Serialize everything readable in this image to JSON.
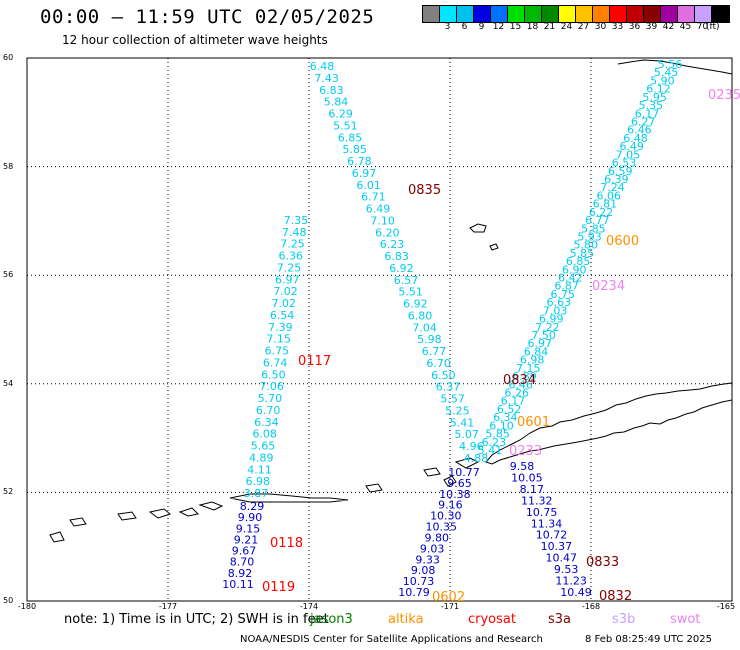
{
  "header": {
    "title": "00:00 — 11:59 UTC 02/05/2025",
    "subtitle": "12 hour collection of altimeter wave heights"
  },
  "legend": {
    "unit": "(ft)",
    "bins": [
      {
        "label": "",
        "color": "#808080"
      },
      {
        "label": "3",
        "color": "#00e5ff"
      },
      {
        "label": "6",
        "color": "#00c0f0"
      },
      {
        "label": "9",
        "color": "#0000e0"
      },
      {
        "label": "12",
        "color": "#0070ff"
      },
      {
        "label": "15",
        "color": "#00e000"
      },
      {
        "label": "18",
        "color": "#00b800"
      },
      {
        "label": "21",
        "color": "#008800"
      },
      {
        "label": "24",
        "color": "#ffff00"
      },
      {
        "label": "27",
        "color": "#ffc000"
      },
      {
        "label": "30",
        "color": "#ff8000"
      },
      {
        "label": "33",
        "color": "#ff0000"
      },
      {
        "label": "36",
        "color": "#c00000"
      },
      {
        "label": "39",
        "color": "#880000"
      },
      {
        "label": "42",
        "color": "#a000a0"
      },
      {
        "label": "45",
        "color": "#e070e0"
      },
      {
        "label": "70",
        "color": "#c8a0ff"
      },
      {
        "label": "",
        "color": "#000000"
      }
    ]
  },
  "axes": {
    "lat_ticks": [
      "60",
      "58",
      "56",
      "54",
      "52",
      "50"
    ],
    "lon_ticks": [
      "-180",
      "-177",
      "-174",
      "-171",
      "-168",
      "-165"
    ],
    "lat_range": [
      50,
      60
    ],
    "lon_range": [
      -180,
      -165
    ]
  },
  "passes": [
    {
      "time": "0835",
      "color": "#800000"
    },
    {
      "time": "0600",
      "color": "#ff9000"
    },
    {
      "time": "0234",
      "color": "#ee82ee"
    },
    {
      "time": "0235",
      "color": "#ee82ee"
    },
    {
      "time": "0834",
      "color": "#800000"
    },
    {
      "time": "0601",
      "color": "#ff9000"
    },
    {
      "time": "0233",
      "color": "#ee82ee"
    },
    {
      "time": "0117",
      "color": "#ff0000"
    },
    {
      "time": "0118",
      "color": "#ff0000"
    },
    {
      "time": "0119",
      "color": "#ff0000"
    },
    {
      "time": "0833",
      "color": "#800000"
    },
    {
      "time": "0832",
      "color": "#800000"
    },
    {
      "time": "0602",
      "color": "#ff9000"
    }
  ],
  "tracks": {
    "track_a": {
      "color": "#00ccee",
      "values": [
        "7.35",
        "7.48",
        "7.25",
        "6.36",
        "7.25",
        "6.97",
        "7.02",
        "7.02",
        "6.54",
        "7.39",
        "7.15",
        "6.75",
        "6.74",
        "6.50",
        "7.06",
        "5.70",
        "6.70",
        "6.34",
        "6.08",
        "5.65",
        "4.89",
        "4.11",
        "6.98",
        "3.87"
      ]
    },
    "track_a_low": {
      "color": "#0000c8",
      "values": [
        "8.29",
        "9.90",
        "9.15",
        "9.21",
        "9.67",
        "8.70",
        "8.92",
        "10.11"
      ]
    },
    "track_b": {
      "color": "#00ccee",
      "values": [
        "6.48",
        "7.43",
        "6.83",
        "5.84",
        "6.29",
        "5.51",
        "6.85",
        "5.85",
        "6.78",
        "6.97",
        "6.01",
        "6.71",
        "6.49",
        "7.10",
        "6.20",
        "6.23",
        "6.83",
        "6.92",
        "6.57",
        "5.51",
        "6.92",
        "6.80",
        "7.04",
        "5.98",
        "6.77",
        "6.70",
        "6.50",
        "6.37",
        "5.57",
        "5.25",
        "5.41",
        "5.07",
        "4.96",
        "4.88"
      ]
    },
    "track_b_low": {
      "color": "#0000c8",
      "values": [
        "10.77",
        "9.65",
        "10.38",
        "9.16",
        "10.30",
        "10.35",
        "9.80",
        "9.03",
        "9.33",
        "9.08",
        "10.73",
        "10.79"
      ]
    },
    "track_c": {
      "color": "#00ccee",
      "values": [
        "5.56",
        "5.45",
        "5.90",
        "6.12",
        "5.95",
        "5.35",
        "6.17",
        "6.27",
        "6.46",
        "6.48",
        "6.49",
        "7.05",
        "6.53",
        "6.59",
        "6.39",
        "7.24",
        "6.06",
        "6.81",
        "6.22",
        "6.77",
        "5.85",
        "5.93",
        "5.80",
        "5.85",
        "6.85",
        "6.90",
        "6.42",
        "6.87",
        "6.75",
        "6.63",
        "7.03",
        "6.99",
        "7.22",
        "7.50",
        "6.97",
        "6.84",
        "6.98",
        "7.15",
        "6.89",
        "6.46",
        "6.26",
        "6.17",
        "6.52",
        "6.34",
        "6.10",
        "5.85",
        "6.23",
        "5.41"
      ]
    },
    "track_c_low": {
      "color": "#0000c8",
      "values": [
        "9.58",
        "10.05",
        "8.17",
        "11.32",
        "10.75",
        "11.34",
        "10.72",
        "10.37",
        "10.47",
        "9.53",
        "11.23",
        "10.49"
      ]
    }
  },
  "footer": {
    "note": "note:  1) Time is in UTC;  2) SWH is in feet",
    "satellites": [
      {
        "name": "jason3",
        "color": "#008000"
      },
      {
        "name": "altika",
        "color": "#ff9000"
      },
      {
        "name": "cryosat",
        "color": "#ff0000"
      },
      {
        "name": "s3a",
        "color": "#800000"
      },
      {
        "name": "s3b",
        "color": "#c8a0ff"
      },
      {
        "name": "swot",
        "color": "#ee82ee"
      }
    ],
    "credit": "NOAA/NESDIS Center for Satellite Applications and Research",
    "timestamp": "8 Feb 08:25:49 UTC 2025"
  }
}
